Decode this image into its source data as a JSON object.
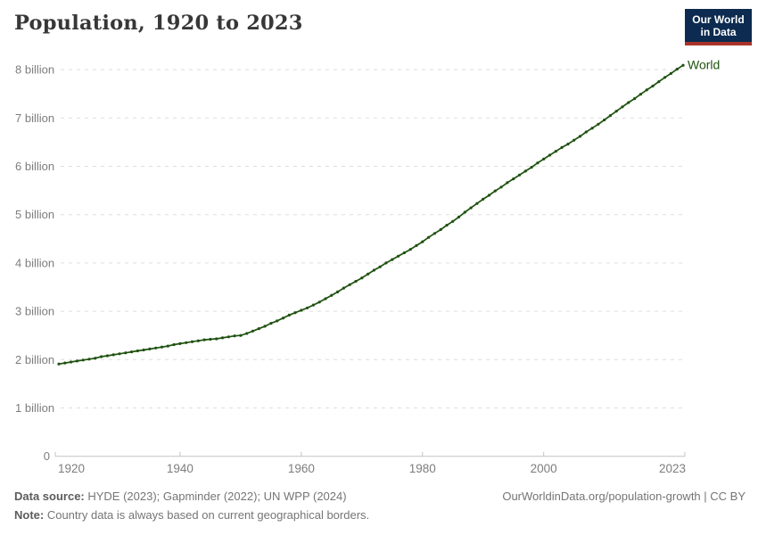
{
  "header": {
    "title": "Population, 1920 to 2023",
    "logo": {
      "line1": "Our World",
      "line2": "in Data"
    }
  },
  "chart_data": {
    "type": "line",
    "title": "Population, 1920 to 2023",
    "unit": "billion people",
    "xlim": [
      1920,
      2023
    ],
    "ylim": [
      0,
      8.4
    ],
    "grid": "horizontal-dashed",
    "legend_position": "end-of-line-label",
    "x_ticks": [
      {
        "year": 1920,
        "label": "1920"
      },
      {
        "year": 1940,
        "label": "1940"
      },
      {
        "year": 1960,
        "label": "1960"
      },
      {
        "year": 1980,
        "label": "1980"
      },
      {
        "year": 2000,
        "label": "2000"
      },
      {
        "year": 2023,
        "label": "2023"
      }
    ],
    "y_ticks": [
      {
        "value": 0,
        "label": "0"
      },
      {
        "value": 1,
        "label": "1 billion"
      },
      {
        "value": 2,
        "label": "2 billion"
      },
      {
        "value": 3,
        "label": "3 billion"
      },
      {
        "value": 4,
        "label": "4 billion"
      },
      {
        "value": 5,
        "label": "5 billion"
      },
      {
        "value": 6,
        "label": "6 billion"
      },
      {
        "value": 7,
        "label": "7 billion"
      },
      {
        "value": 8,
        "label": "8 billion"
      }
    ],
    "series": [
      {
        "name": "World",
        "color": "#1f5210",
        "start_year": 1920,
        "values_unit": "billions",
        "values": [
          1.91,
          1.93,
          1.95,
          1.97,
          1.99,
          2.01,
          2.03,
          2.06,
          2.08,
          2.1,
          2.12,
          2.14,
          2.16,
          2.18,
          2.2,
          2.22,
          2.24,
          2.26,
          2.28,
          2.31,
          2.33,
          2.35,
          2.37,
          2.39,
          2.41,
          2.42,
          2.43,
          2.45,
          2.47,
          2.49,
          2.5,
          2.54,
          2.59,
          2.64,
          2.69,
          2.75,
          2.8,
          2.86,
          2.92,
          2.97,
          3.02,
          3.07,
          3.13,
          3.19,
          3.26,
          3.33,
          3.4,
          3.48,
          3.55,
          3.62,
          3.69,
          3.77,
          3.85,
          3.92,
          4.0,
          4.07,
          4.14,
          4.21,
          4.28,
          4.36,
          4.44,
          4.53,
          4.61,
          4.69,
          4.78,
          4.86,
          4.95,
          5.05,
          5.14,
          5.23,
          5.32,
          5.4,
          5.49,
          5.57,
          5.66,
          5.74,
          5.82,
          5.9,
          5.98,
          6.07,
          6.15,
          6.23,
          6.31,
          6.39,
          6.46,
          6.54,
          6.62,
          6.71,
          6.79,
          6.87,
          6.96,
          7.05,
          7.14,
          7.23,
          7.32,
          7.4,
          7.49,
          7.58,
          7.66,
          7.75,
          7.84,
          7.92,
          8.01,
          8.09
        ]
      }
    ]
  },
  "footer": {
    "source_label": "Data source:",
    "source_text": " HYDE (2023); Gapminder (2022); UN WPP (2024)",
    "note_label": "Note:",
    "note_text": " Country data is always based on current geographical borders.",
    "link_text": "OurWorldinData.org/population-growth | CC BY"
  },
  "colors": {
    "line": "#1f5210",
    "grid": "#dedede",
    "axis": "#c4c4c4",
    "tick_label": "#7d7d7d",
    "title": "#373737",
    "logo_bg": "#0d2b50",
    "logo_accent": "#a93329"
  }
}
